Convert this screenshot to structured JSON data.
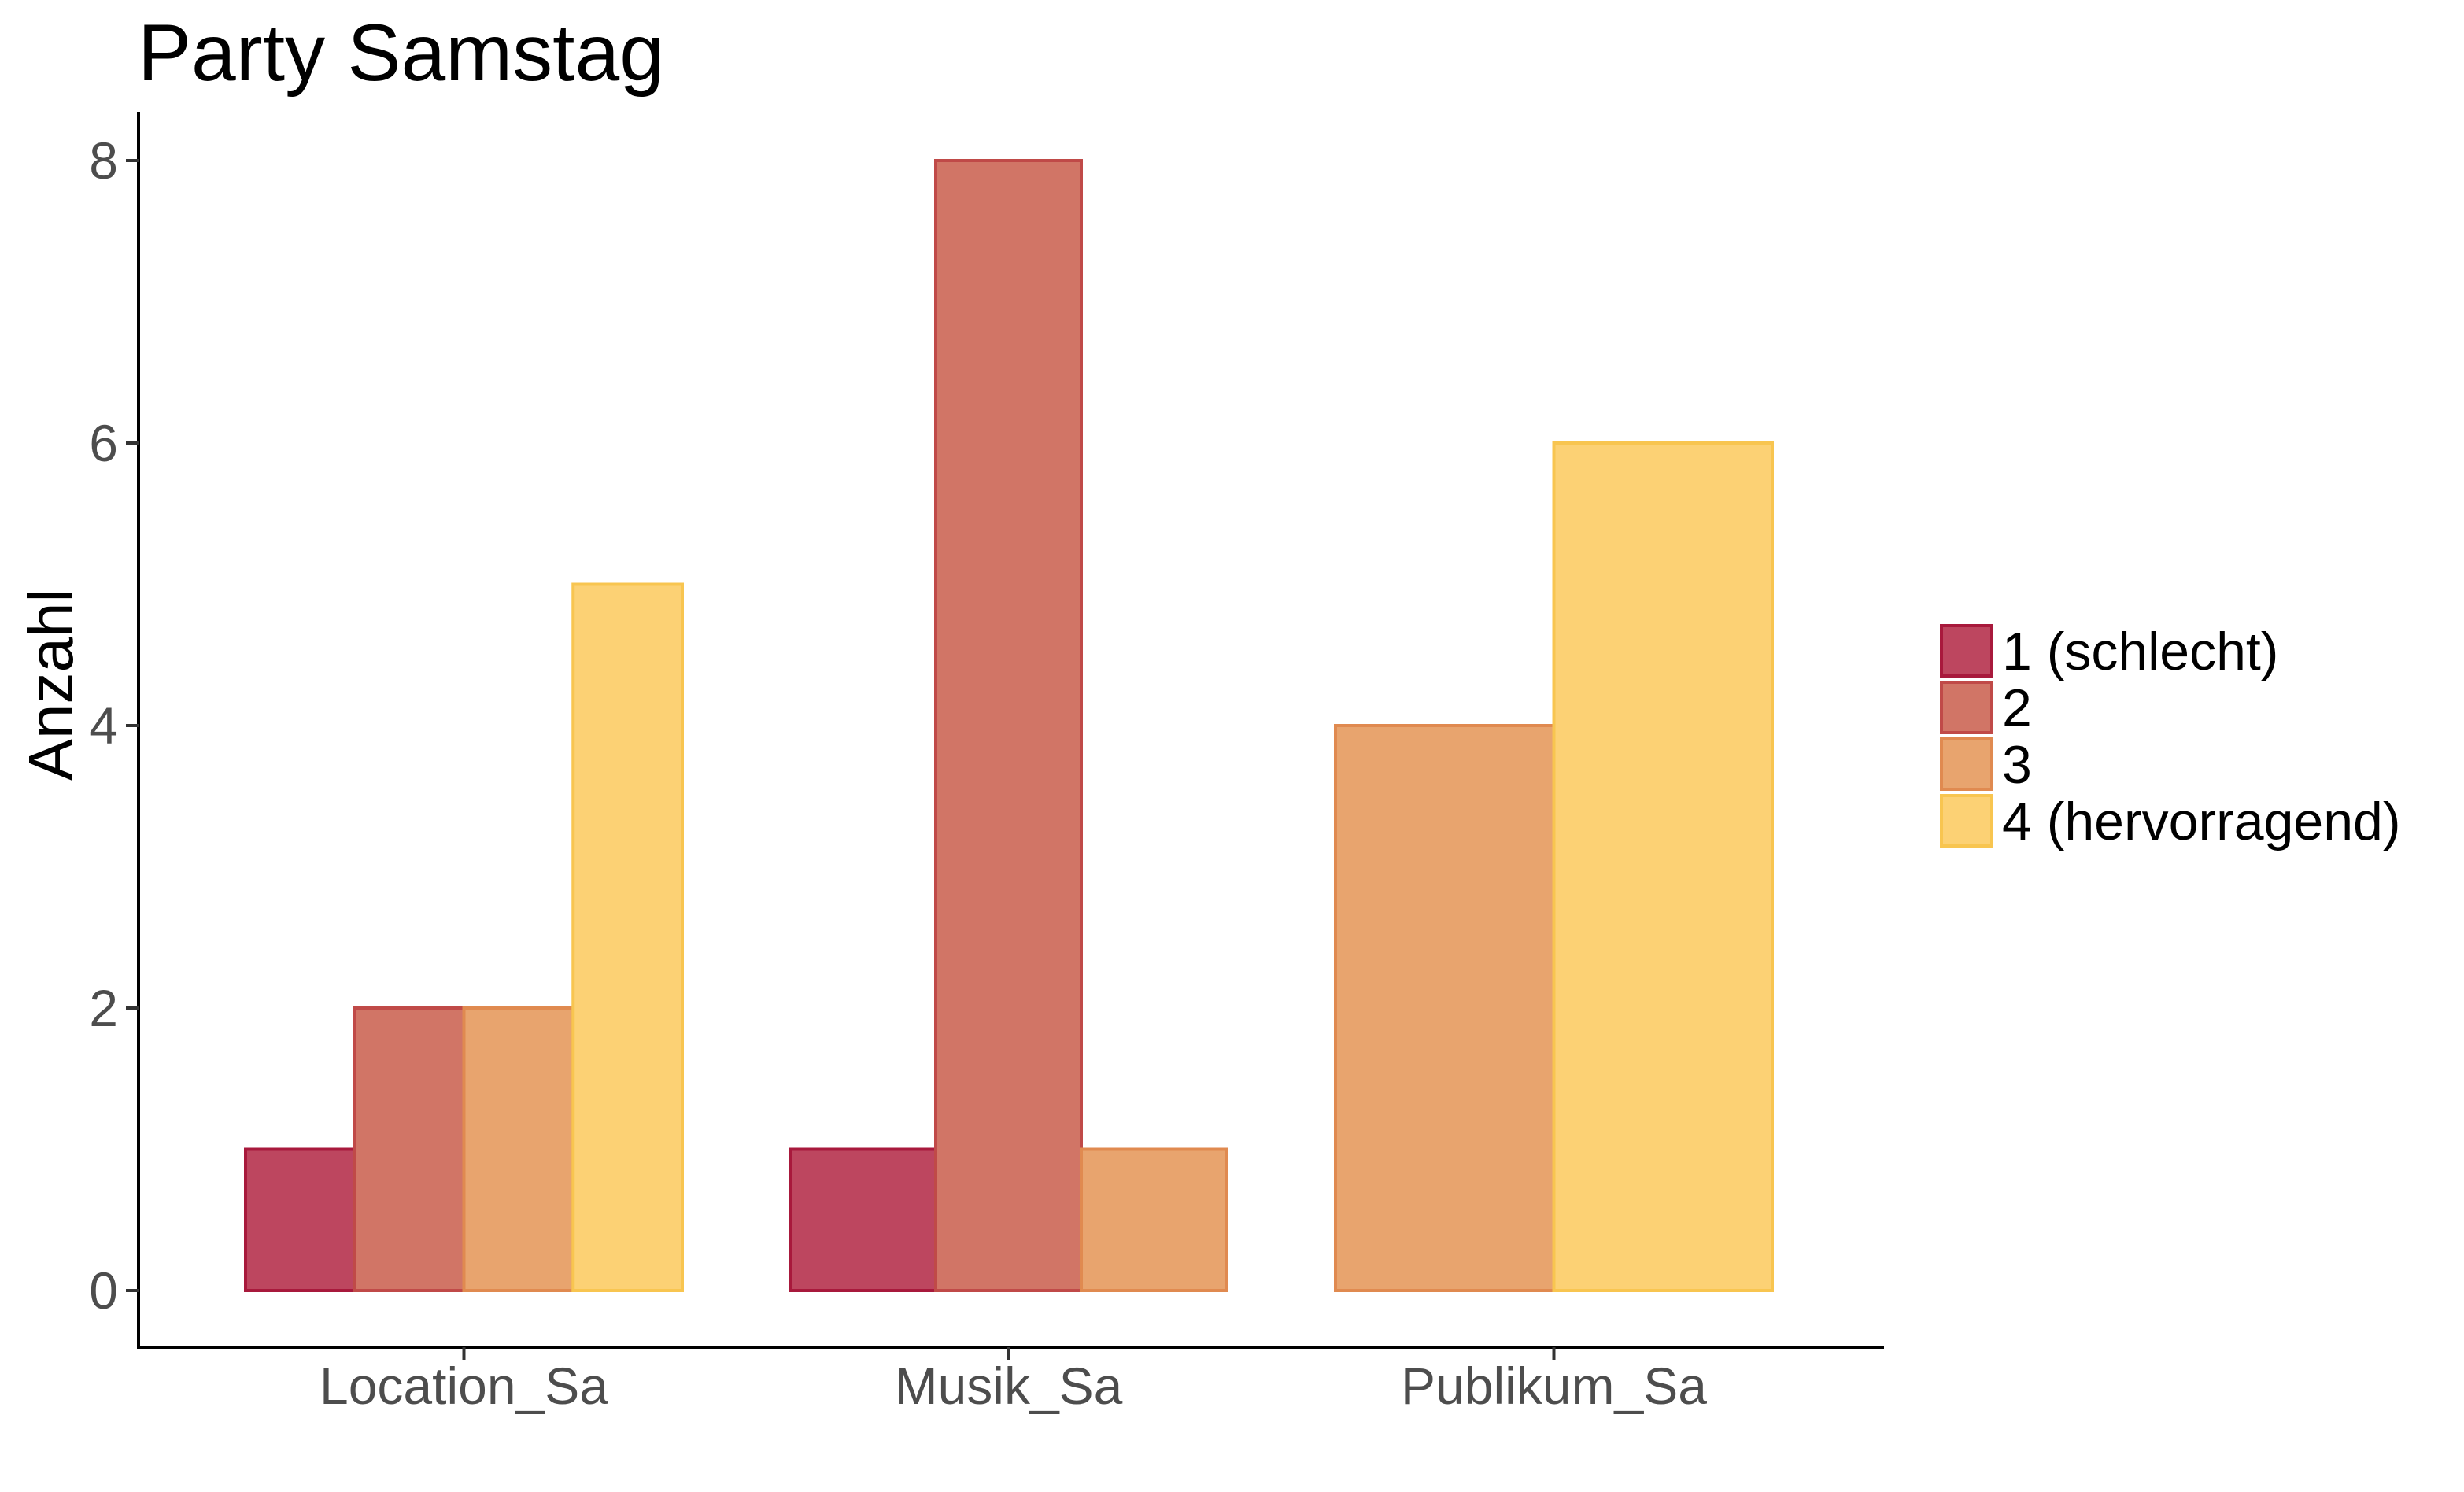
{
  "chart_data": {
    "type": "bar",
    "title": "Party Samstag",
    "xlabel": "",
    "ylabel": "Anzahl",
    "categories": [
      "Location_Sa",
      "Musik_Sa",
      "Publikum_Sa"
    ],
    "series": [
      {
        "name": "1 (schlecht)",
        "values": [
          1,
          1,
          0
        ],
        "fill": "#bd465f",
        "stroke": "#a8193c"
      },
      {
        "name": "2",
        "values": [
          2,
          8,
          0
        ],
        "fill": "#d17566",
        "stroke": "#c04a48"
      },
      {
        "name": "3",
        "values": [
          2,
          1,
          4
        ],
        "fill": "#e8a46e",
        "stroke": "#e08a50"
      },
      {
        "name": "4 (hervorragend)",
        "values": [
          5,
          0,
          6
        ],
        "fill": "#fcd174",
        "stroke": "#f8c550"
      }
    ],
    "ylim": [
      0,
      8
    ],
    "yticks": [
      0,
      2,
      4,
      6,
      8
    ],
    "grid": false,
    "legend": "right"
  }
}
